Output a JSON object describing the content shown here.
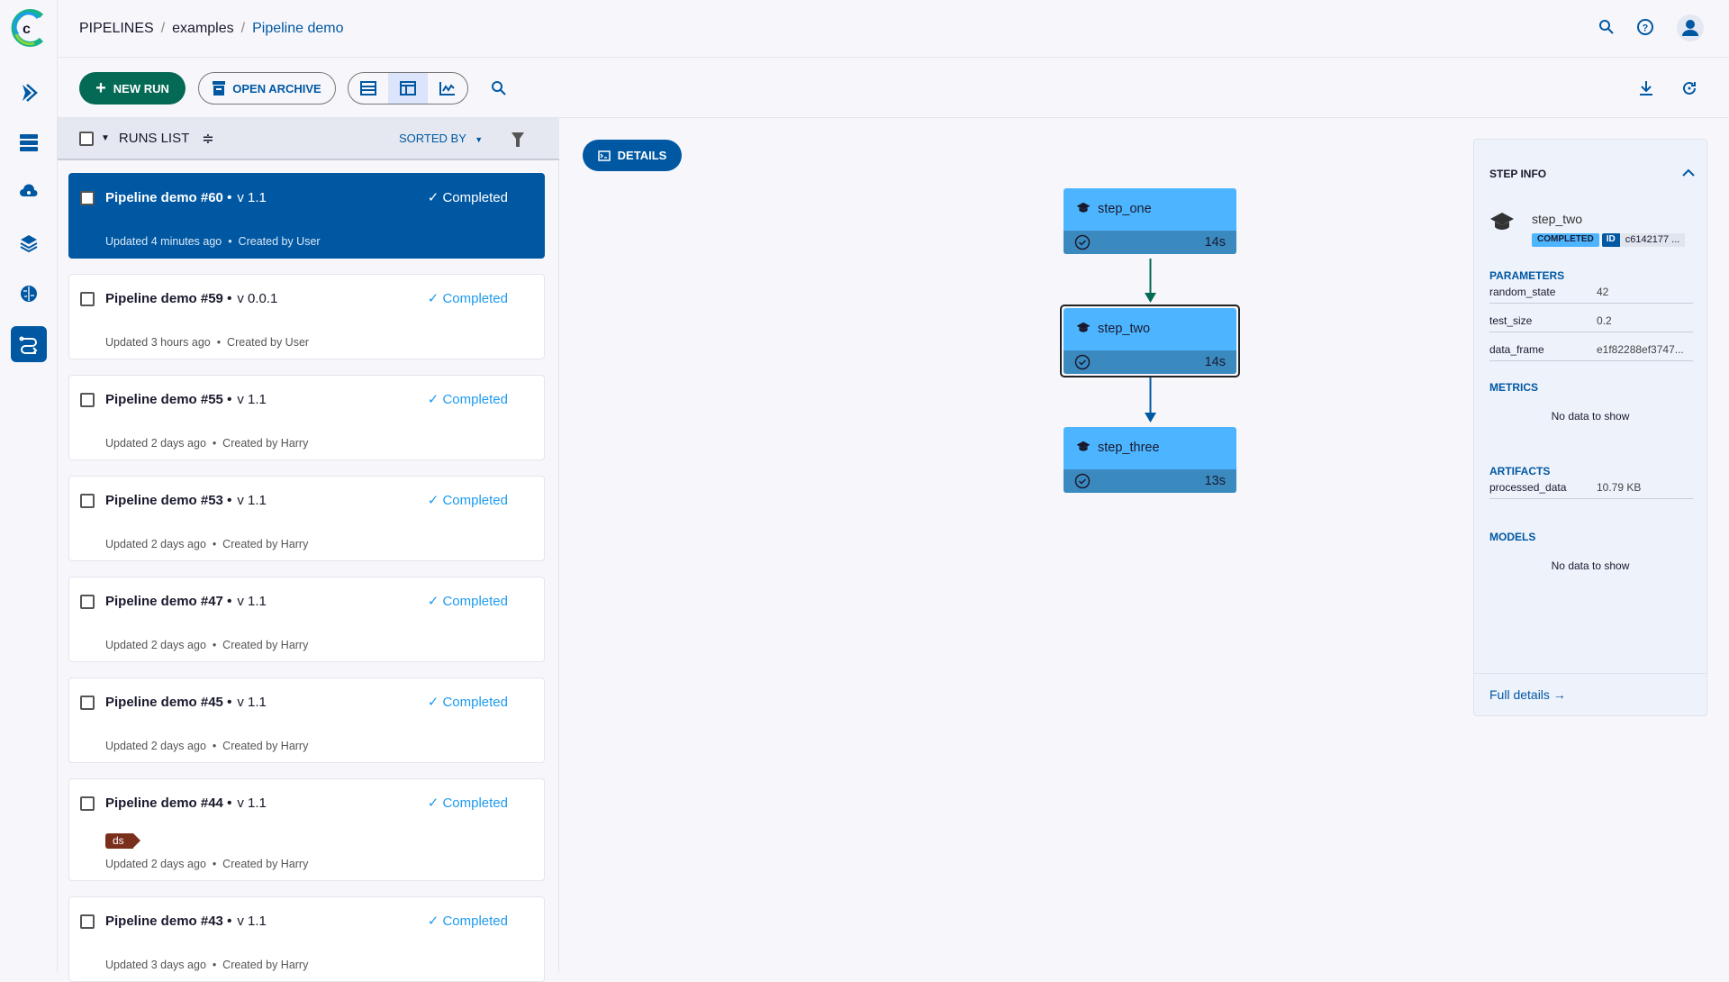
{
  "header": {
    "breadcrumbs": [
      "PIPELINES",
      "examples",
      "Pipeline demo"
    ]
  },
  "sidebar": {
    "items": [
      "pipelines-icon",
      "datasets-icon",
      "cloud-icon",
      "layers-icon",
      "brain-icon",
      "pipelines-active-icon"
    ]
  },
  "toolbar": {
    "new_run": "NEW RUN",
    "open_archive": "OPEN ARCHIVE"
  },
  "runs_list": {
    "title": "RUNS LIST",
    "sorted_by": "SORTED BY",
    "runs": [
      {
        "name": "Pipeline demo #60",
        "version": "v 1.1",
        "status": "Completed",
        "updated": "Updated 4 minutes ago",
        "creator": "Created by User",
        "selected": true
      },
      {
        "name": "Pipeline demo #59",
        "version": "v 0.0.1",
        "status": "Completed",
        "updated": "Updated 3 hours ago",
        "creator": "Created by User"
      },
      {
        "name": "Pipeline demo #55",
        "version": "v 1.1",
        "status": "Completed",
        "updated": "Updated 2 days ago",
        "creator": "Created by Harry"
      },
      {
        "name": "Pipeline demo #53",
        "version": "v 1.1",
        "status": "Completed",
        "updated": "Updated 2 days ago",
        "creator": "Created by Harry"
      },
      {
        "name": "Pipeline demo #47",
        "version": "v 1.1",
        "status": "Completed",
        "updated": "Updated 2 days ago",
        "creator": "Created by Harry"
      },
      {
        "name": "Pipeline demo #45",
        "version": "v 1.1",
        "status": "Completed",
        "updated": "Updated 2 days ago",
        "creator": "Created by Harry"
      },
      {
        "name": "Pipeline demo #44",
        "version": "v 1.1",
        "status": "Completed",
        "tag": "ds",
        "updated": "Updated 2 days ago",
        "creator": "Created by Harry"
      },
      {
        "name": "Pipeline demo #43",
        "version": "v 1.1",
        "status": "Completed",
        "updated": "Updated 3 days ago",
        "creator": "Created by Harry"
      }
    ]
  },
  "graph": {
    "details_label": "DETAILS",
    "steps": [
      {
        "name": "step_one",
        "duration": "14s"
      },
      {
        "name": "step_two",
        "duration": "14s",
        "selected": true
      },
      {
        "name": "step_three",
        "duration": "13s"
      }
    ],
    "edge_colors": [
      "#046a55",
      "#0058a3"
    ]
  },
  "step_info": {
    "title": "STEP INFO",
    "step_name": "step_two",
    "status": "COMPLETED",
    "id_label": "ID",
    "id": "c6142177 ...",
    "parameters_title": "PARAMETERS",
    "parameters": [
      {
        "k": "random_state",
        "v": "42"
      },
      {
        "k": "test_size",
        "v": "0.2"
      },
      {
        "k": "data_frame",
        "v": "e1f82288ef3747..."
      }
    ],
    "metrics_title": "METRICS",
    "metrics_empty": "No data to show",
    "artifacts_title": "ARTIFACTS",
    "artifacts": [
      {
        "k": "processed_data",
        "v": "10.79 KB"
      }
    ],
    "models_title": "MODELS",
    "models_empty": "No data to show",
    "full_details": "Full details →"
  },
  "colors": {
    "primary": "#0058a3",
    "new_run": "#046a55",
    "step": "#4db5ff",
    "completed": "#1e9bf0",
    "tag": "#7a2e1c"
  }
}
